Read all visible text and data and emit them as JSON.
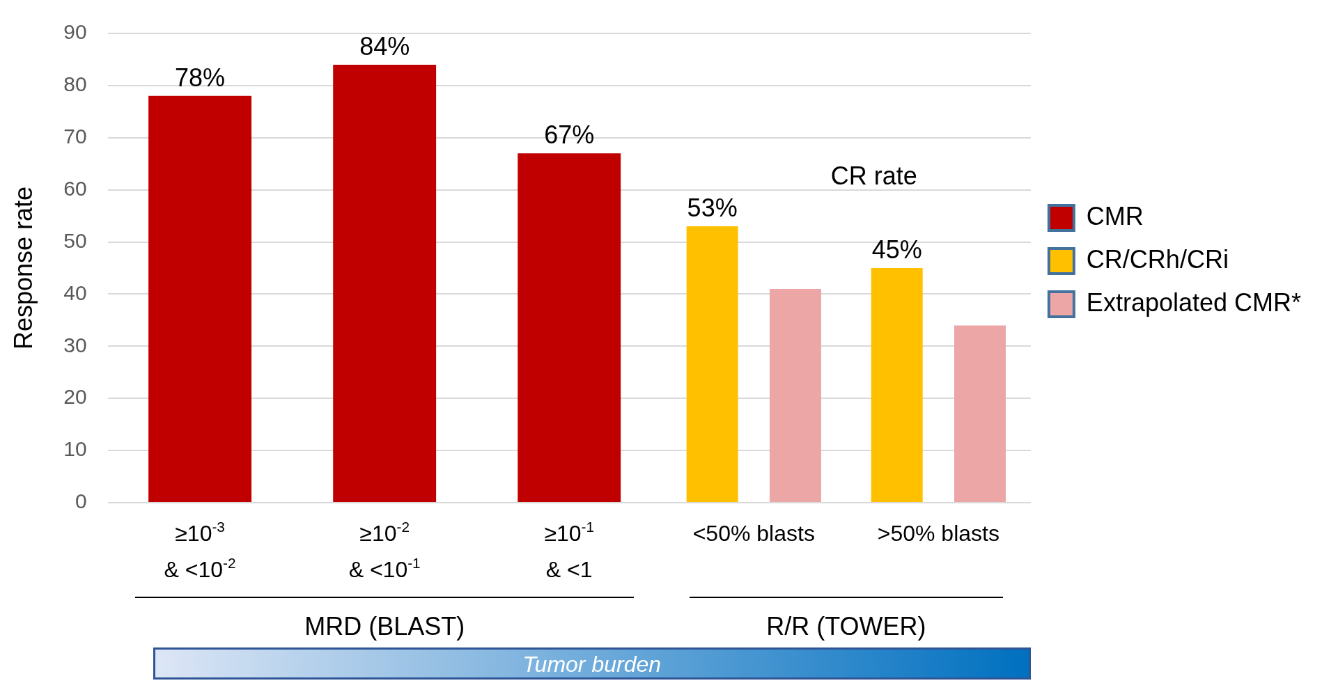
{
  "chart_data": {
    "type": "bar",
    "ylabel": "Response rate",
    "categories": [
      "≥10$^{-3}$\n& <10$^{-2}$",
      "≥10$^{-2}$\n& <10$^{-1}$",
      "≥10$^{-1}$\n& <1",
      "<50% blasts",
      ">50% blasts"
    ],
    "series": [
      {
        "name": "CMR",
        "color": "#c00000",
        "values": [
          78,
          84,
          67,
          null,
          null
        ],
        "value_labels": [
          "78%",
          "84%",
          "67%",
          null,
          null
        ]
      },
      {
        "name": "CR/CRh/CRi",
        "color": "#ffc000",
        "values": [
          null,
          null,
          null,
          53,
          45
        ],
        "value_labels": [
          null,
          null,
          null,
          "53%",
          "45%"
        ]
      },
      {
        "name": "Extrapolated CMR*",
        "color": "#eca6a6",
        "values": [
          null,
          null,
          null,
          41,
          34
        ]
      }
    ],
    "ylim": [
      0,
      90
    ],
    "yticks": [
      0,
      10,
      20,
      30,
      40,
      50,
      60,
      70,
      80,
      90
    ],
    "grid": "y",
    "legend": "right",
    "annotations": [
      "CR rate",
      "MRD (BLAST)",
      "R/R (TOWER)",
      "Tumor burden"
    ]
  }
}
